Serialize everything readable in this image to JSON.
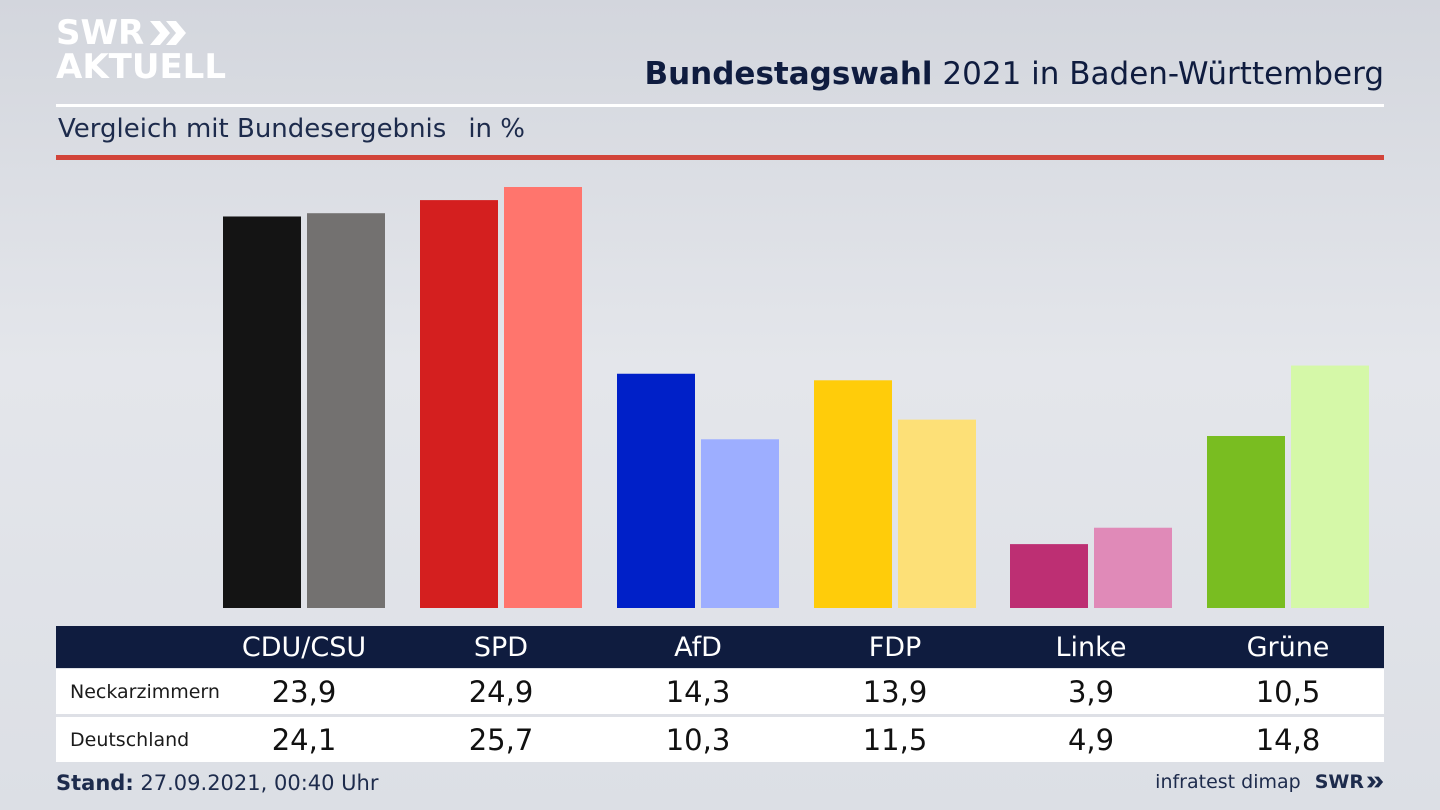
{
  "brand": {
    "line1": "SWR",
    "line2": "AKTUELL",
    "footer_logo": "SWR"
  },
  "header": {
    "title_bold": "Bundestagswahl",
    "title_rest": " 2021 in Baden-Württemberg",
    "subtitle": "Vergleich mit Bundesergebnis",
    "unit": "in %"
  },
  "chart_data": {
    "type": "bar",
    "categories": [
      "CDU/CSU",
      "SPD",
      "AfD",
      "FDP",
      "Linke",
      "Grüne"
    ],
    "series": [
      {
        "name": "Neckarzimmern",
        "values": [
          23.9,
          24.9,
          14.3,
          13.9,
          3.9,
          10.5
        ]
      },
      {
        "name": "Deutschland",
        "values": [
          24.1,
          25.7,
          10.3,
          11.5,
          4.9,
          14.8
        ]
      }
    ],
    "colors": {
      "local": [
        "#141414",
        "#d41f1f",
        "#0020c8",
        "#ffcc0a",
        "#bd2f73",
        "#79bd21"
      ],
      "national": [
        "#737170",
        "#ff756d",
        "#9daeff",
        "#fde077",
        "#e08ab8",
        "#d5f8a8"
      ]
    },
    "ylim": [
      0,
      25.7
    ],
    "grid": false,
    "legend": "table-below"
  },
  "table": {
    "rows": [
      {
        "label": "Neckarzimmern",
        "values": [
          "23,9",
          "24,9",
          "14,3",
          "13,9",
          "3,9",
          "10,5"
        ]
      },
      {
        "label": "Deutschland",
        "values": [
          "24,1",
          "25,7",
          "10,3",
          "11,5",
          "4,9",
          "14,8"
        ]
      }
    ]
  },
  "footer": {
    "stand_label": "Stand:",
    "stand_value": " 27.09.2021, 00:40 Uhr",
    "source": "infratest dimap"
  }
}
